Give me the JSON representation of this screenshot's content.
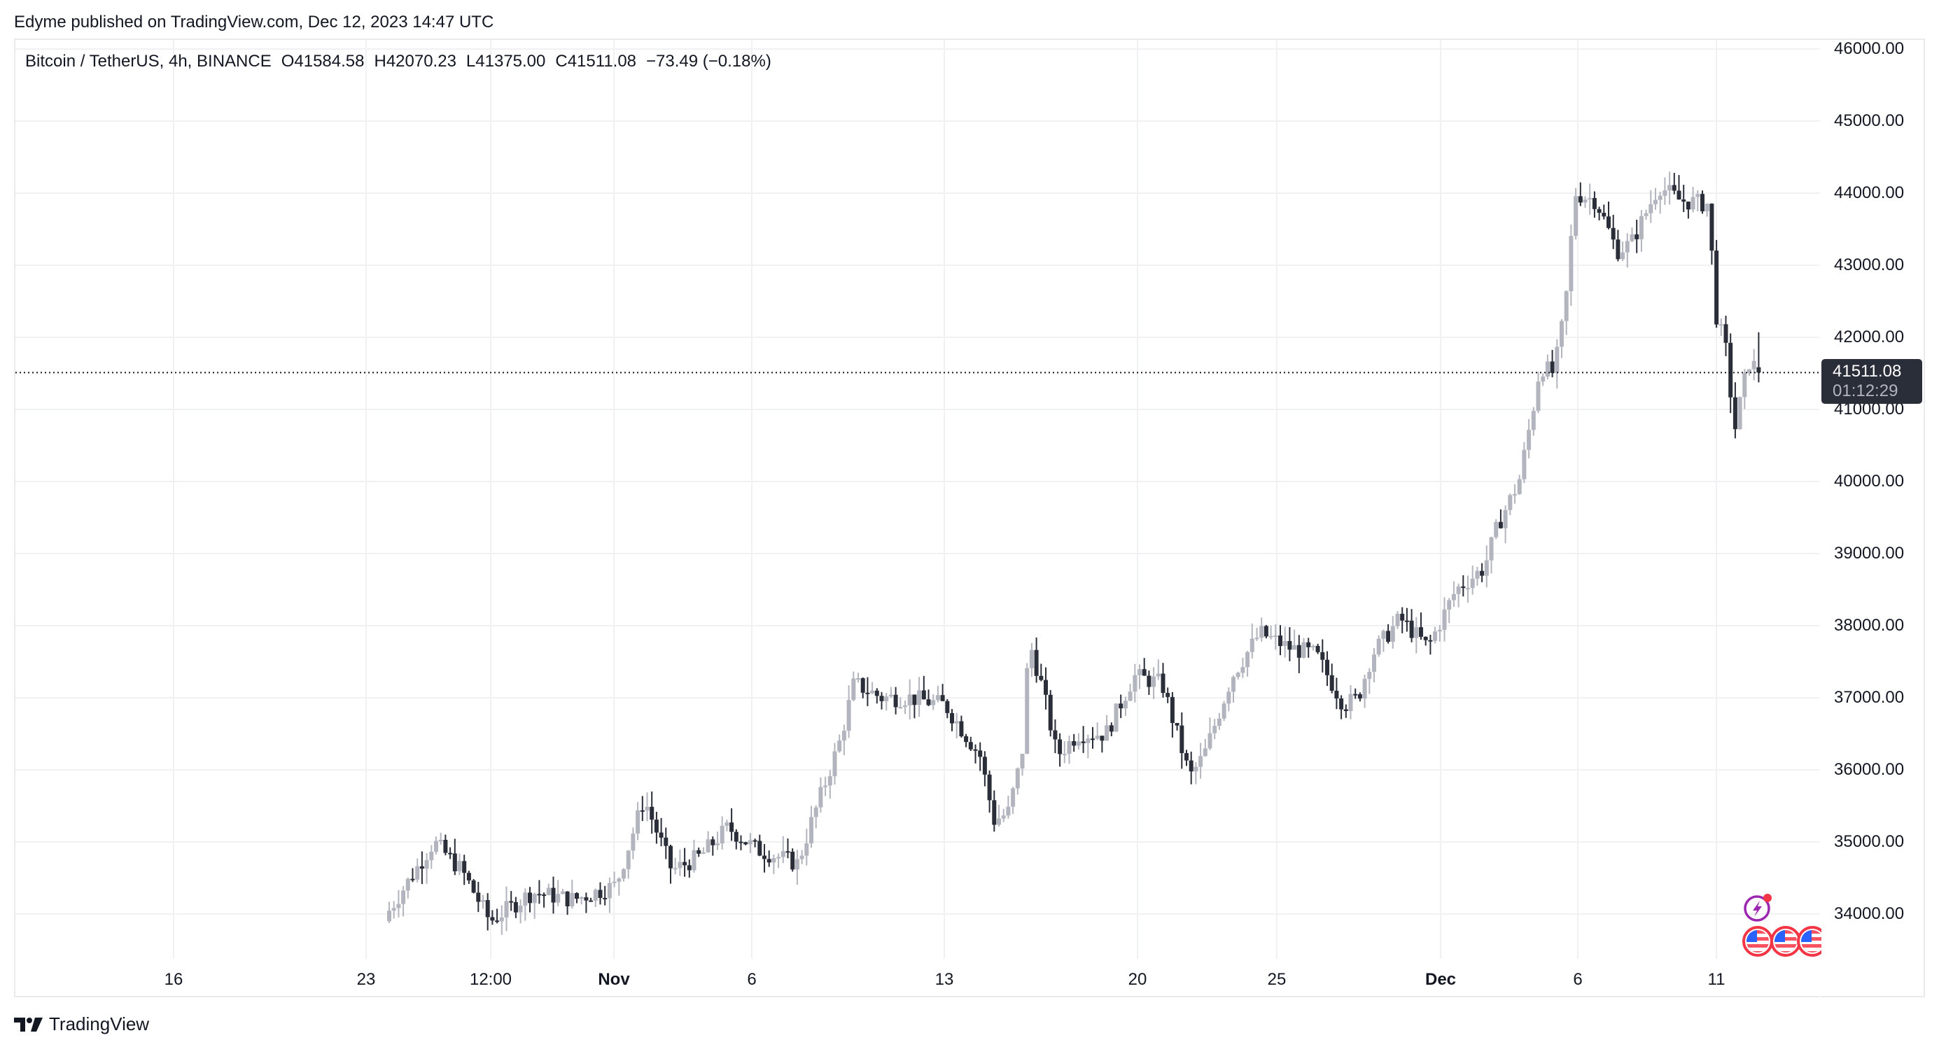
{
  "header": {
    "published": "Edyme published on TradingView.com, Dec 12, 2023 14:47 UTC"
  },
  "legend": {
    "symbol": "Bitcoin / TetherUS, 4h, BINANCE",
    "open": "O41584.58",
    "high": "H42070.23",
    "low": "L41375.00",
    "close": "C41511.08",
    "change": "−73.49 (−0.18%)"
  },
  "last_price": {
    "value": "41511.08",
    "countdown": "01:12:29"
  },
  "footer": {
    "brand": "TradingView"
  },
  "colors": {
    "up": "#b2b5be",
    "down": "#2a2e39",
    "grid": "#f0f1f3",
    "border": "#e9eaee",
    "badge_bg": "#2a2e39",
    "event_purple": "#9c27b0",
    "event_red": "#f23645"
  },
  "icons": {
    "events": [
      "lightning-event-icon",
      "us-flag-icon",
      "us-flag-icon",
      "us-flag-icon"
    ],
    "logo": "tradingview-logo-icon"
  },
  "chart_data": {
    "type": "candlestick",
    "title": "Bitcoin / TetherUS, 4h, BINANCE",
    "xlabel": "",
    "ylabel": "",
    "ylim": [
      33300,
      46200
    ],
    "grid": true,
    "y_ticks": [
      "46000.00",
      "45000.00",
      "44000.00",
      "43000.00",
      "42000.00",
      "41000.00",
      "40000.00",
      "39000.00",
      "38000.00",
      "37000.00",
      "36000.00",
      "35000.00",
      "34000.00"
    ],
    "x_ticks": [
      {
        "label": "16",
        "x": 248,
        "major": false
      },
      {
        "label": "23",
        "x": 523,
        "major": false
      },
      {
        "label": "12:00",
        "x": 701,
        "major": false
      },
      {
        "label": "Nov",
        "x": 877,
        "major": true
      },
      {
        "label": "6",
        "x": 1074,
        "major": false
      },
      {
        "label": "13",
        "x": 1349,
        "major": false
      },
      {
        "label": "20",
        "x": 1625,
        "major": false
      },
      {
        "label": "25",
        "x": 1824,
        "major": false
      },
      {
        "label": "Dec",
        "x": 2058,
        "major": true
      },
      {
        "label": "6",
        "x": 2254,
        "major": false
      },
      {
        "label": "11",
        "x": 2452,
        "major": false
      }
    ],
    "last": {
      "open": 41584.58,
      "high": 42070.23,
      "low": 41375.0,
      "close": 41511.08,
      "change": -73.49,
      "change_pct": -0.18
    },
    "path_waypoints": [
      [
        556,
        34050
      ],
      [
        620,
        35000
      ],
      [
        660,
        34600
      ],
      [
        700,
        33900
      ],
      [
        760,
        34300
      ],
      [
        820,
        34200
      ],
      [
        880,
        34400
      ],
      [
        920,
        35600
      ],
      [
        960,
        34600
      ],
      [
        1000,
        34800
      ],
      [
        1040,
        35200
      ],
      [
        1080,
        34900
      ],
      [
        1140,
        34700
      ],
      [
        1160,
        35300
      ],
      [
        1200,
        36400
      ],
      [
        1220,
        37200
      ],
      [
        1260,
        37000
      ],
      [
        1300,
        37000
      ],
      [
        1350,
        36900
      ],
      [
        1400,
        36200
      ],
      [
        1420,
        35300
      ],
      [
        1440,
        35400
      ],
      [
        1460,
        36200
      ],
      [
        1470,
        37800
      ],
      [
        1490,
        37100
      ],
      [
        1510,
        36200
      ],
      [
        1540,
        36500
      ],
      [
        1580,
        36500
      ],
      [
        1620,
        37300
      ],
      [
        1660,
        37200
      ],
      [
        1700,
        35900
      ],
      [
        1720,
        36200
      ],
      [
        1760,
        37300
      ],
      [
        1800,
        37900
      ],
      [
        1840,
        37700
      ],
      [
        1880,
        37600
      ],
      [
        1920,
        36900
      ],
      [
        1940,
        37000
      ],
      [
        1960,
        37600
      ],
      [
        2000,
        38100
      ],
      [
        2040,
        37700
      ],
      [
        2080,
        38500
      ],
      [
        2120,
        38800
      ],
      [
        2140,
        39400
      ],
      [
        2170,
        40000
      ],
      [
        2190,
        41000
      ],
      [
        2200,
        41600
      ],
      [
        2220,
        41500
      ],
      [
        2236,
        42400
      ],
      [
        2250,
        44000
      ],
      [
        2280,
        43900
      ],
      [
        2310,
        43200
      ],
      [
        2330,
        43300
      ],
      [
        2350,
        43700
      ],
      [
        2370,
        44100
      ],
      [
        2400,
        43900
      ],
      [
        2440,
        43850
      ],
      [
        2452,
        42300
      ],
      [
        2466,
        41800
      ],
      [
        2478,
        40700
      ],
      [
        2490,
        41300
      ],
      [
        2500,
        41700
      ],
      [
        2511,
        41511
      ]
    ]
  }
}
